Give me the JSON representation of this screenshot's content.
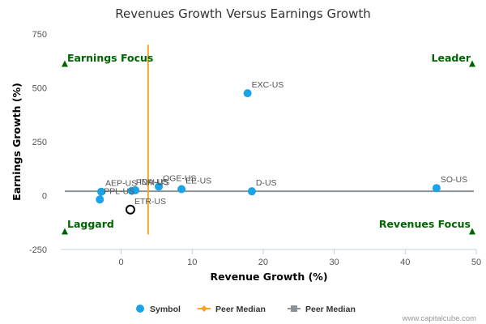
{
  "chart_data": {
    "type": "scatter",
    "title": "Revenues Growth Versus Earnings Growth",
    "xlabel": "Revenue Growth (%)",
    "ylabel": "Earnings Growth (%)",
    "xlim": [
      -8.5,
      50
    ],
    "ylim": [
      -250,
      750
    ],
    "xticks": [
      0,
      10,
      20,
      30,
      40,
      50
    ],
    "yticks": [
      -250,
      0,
      250,
      500,
      750
    ],
    "grid": false,
    "colors": {
      "symbol": "#1aa3e8",
      "peer_median_x": "#f5a623",
      "peer_median_y": "#8c9297",
      "quadrant_text": "#006400"
    },
    "points": [
      {
        "label": "EXC-US",
        "x": 17.8,
        "y": 475
      },
      {
        "label": "OGE-US",
        "x": 5.3,
        "y": 42
      },
      {
        "label": "EE-US",
        "x": 8.5,
        "y": 30
      },
      {
        "label": "D-US",
        "x": 18.4,
        "y": 20
      },
      {
        "label": "SO-US",
        "x": 44.4,
        "y": 35
      },
      {
        "label": "AEP-US",
        "x": -2.8,
        "y": 18
      },
      {
        "label": "PPL-US",
        "x": -3.0,
        "y": -18
      },
      {
        "label": "PNM-US",
        "x": 1.5,
        "y": 22
      },
      {
        "label": "IDA-US",
        "x": 2.0,
        "y": 25
      },
      {
        "label": "ETR-US",
        "x": 1.3,
        "y": -65,
        "highlight": true
      }
    ],
    "peer_median": {
      "x": 3.8,
      "y": 20
    },
    "quadrants": {
      "top_left": "Earnings Focus",
      "top_right": "Leader",
      "bottom_left": "Laggard",
      "bottom_right": "Revenues Focus"
    },
    "legend": [
      "Symbol",
      "Peer Median",
      "Peer Median"
    ],
    "legend_position": "bottom"
  },
  "credit": "www.capitalcube.com"
}
